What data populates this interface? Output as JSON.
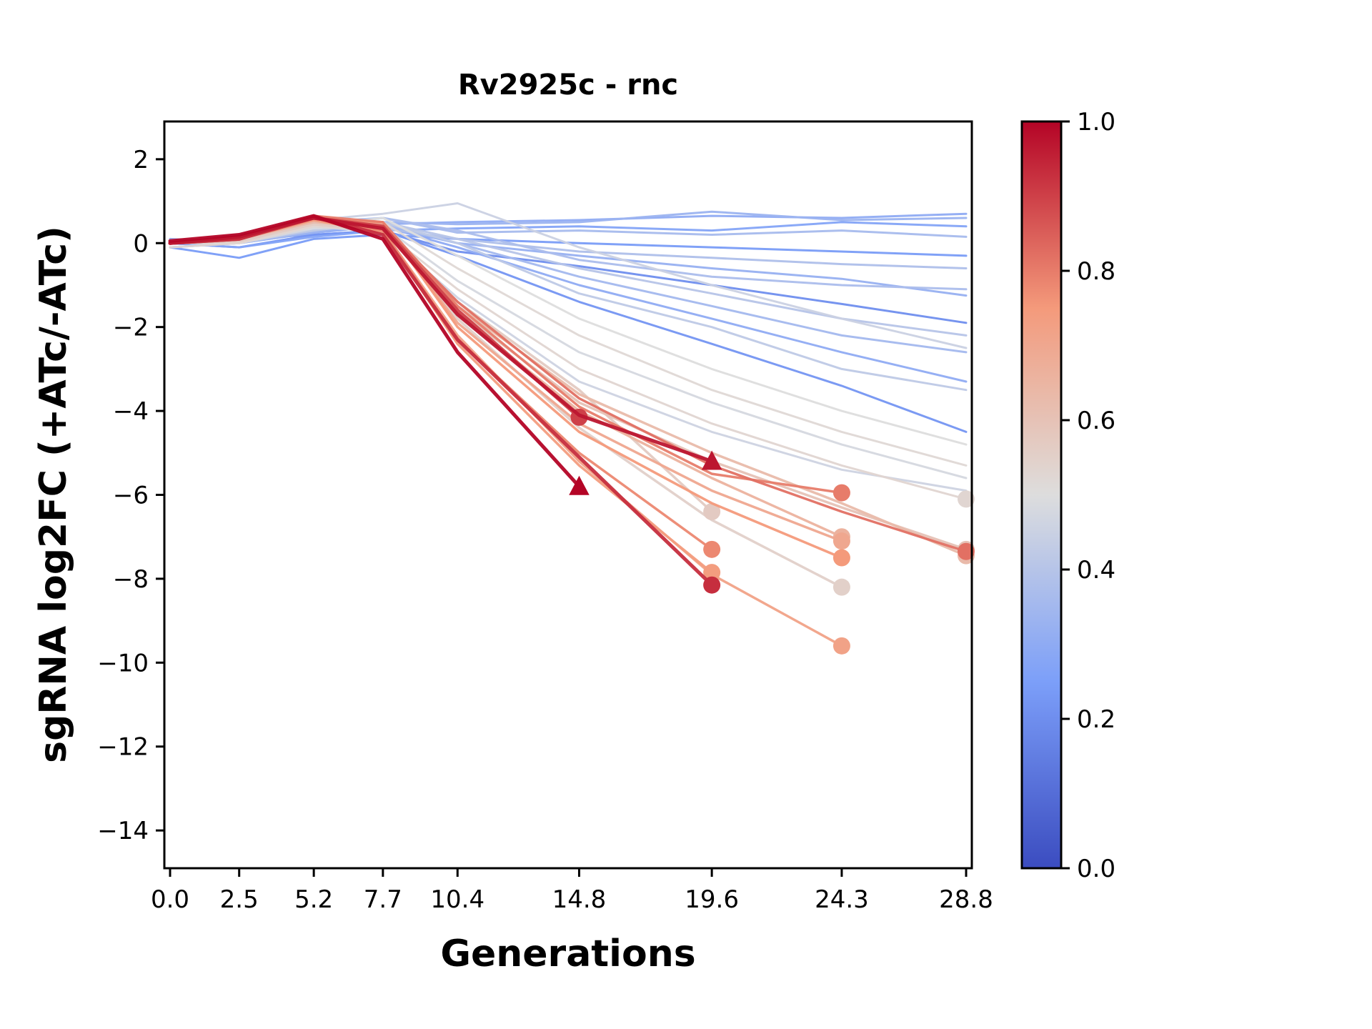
{
  "title": "Rv2925c - rnc",
  "xlabel": "Generations",
  "ylabel": "sgRNA log2FC (+ATc/-ATc)",
  "chart_data": {
    "type": "line",
    "x": [
      0.0,
      2.5,
      5.2,
      7.7,
      10.4,
      14.8,
      19.6,
      24.3,
      28.8
    ],
    "x_tick_labels": [
      "0.0",
      "2.5",
      "5.2",
      "7.7",
      "10.4",
      "14.8",
      "19.6",
      "24.3",
      "28.8"
    ],
    "y_ticks": [
      2,
      0,
      -2,
      -4,
      -6,
      -8,
      -10,
      -12,
      -14
    ],
    "y_tick_labels": [
      "2",
      "0",
      "−2",
      "−4",
      "−6",
      "−8",
      "−10",
      "−12",
      "−14"
    ],
    "xlim": [
      -0.2,
      29.0
    ],
    "ylim": [
      -14.9,
      2.9
    ],
    "grid": false,
    "legend": "none",
    "colorbar": {
      "min": 0.0,
      "max": 1.0,
      "tick_labels": [
        "1.0",
        "0.8",
        "0.6",
        "0.4",
        "0.2",
        "0.0"
      ],
      "colormap": "coolwarm",
      "stops": [
        {
          "t": 0.0,
          "color": "#3b4cc0"
        },
        {
          "t": 0.25,
          "color": "#7c9ff9"
        },
        {
          "t": 0.5,
          "color": "#dddddd"
        },
        {
          "t": 0.75,
          "color": "#f49a7b"
        },
        {
          "t": 1.0,
          "color": "#b40426"
        }
      ]
    },
    "series": [
      {
        "c": 0.2,
        "y": [
          0,
          0.1,
          0.2,
          0.3,
          -0.2,
          -0.55,
          -1.0,
          -1.45,
          -1.9
        ],
        "marker": null
      },
      {
        "c": 0.22,
        "y": [
          0,
          -0.1,
          0.2,
          0.3,
          -0.3,
          -1.4,
          -2.4,
          -3.4,
          -4.5
        ],
        "marker": null
      },
      {
        "c": 0.24,
        "y": [
          -0.1,
          -0.35,
          0.1,
          0.2,
          0.1,
          0,
          -0.1,
          -0.2,
          -0.3
        ],
        "marker": null
      },
      {
        "c": 0.27,
        "y": [
          0,
          -0.1,
          0.15,
          0.3,
          0.35,
          0.4,
          0.3,
          0.5,
          0.4
        ],
        "marker": null
      },
      {
        "c": 0.3,
        "y": [
          0,
          0.1,
          0.3,
          0.45,
          0.5,
          0.55,
          0.65,
          0.6,
          0.7
        ],
        "marker": null
      },
      {
        "c": 0.3,
        "y": [
          0,
          0,
          0.25,
          0.4,
          -0.1,
          -1.0,
          -1.8,
          -2.6,
          -3.3
        ],
        "marker": null
      },
      {
        "c": 0.32,
        "y": [
          0.1,
          0,
          0.3,
          0.4,
          0,
          -0.3,
          -0.6,
          -0.85,
          -1.25
        ],
        "marker": null
      },
      {
        "c": 0.33,
        "y": [
          -0.1,
          0,
          0.25,
          0.5,
          0.45,
          0.5,
          0.75,
          0.55,
          0.6
        ],
        "marker": null
      },
      {
        "c": 0.35,
        "y": [
          0,
          0.1,
          0.4,
          0.45,
          0,
          -0.8,
          -1.5,
          -2.2,
          -2.6
        ],
        "marker": null
      },
      {
        "c": 0.36,
        "y": [
          0,
          0.1,
          0.4,
          0.6,
          0.25,
          0.3,
          0.2,
          0.3,
          0.15
        ],
        "marker": null
      },
      {
        "c": 0.37,
        "y": [
          0,
          0.15,
          0.5,
          0.6,
          0.3,
          -0.4,
          -0.8,
          -1.0,
          -1.1
        ],
        "marker": null
      },
      {
        "c": 0.38,
        "y": [
          0,
          0.2,
          0.5,
          0.35,
          0.1,
          -0.2,
          -0.35,
          -0.5,
          -0.6
        ],
        "marker": null
      },
      {
        "c": 0.4,
        "y": [
          -0.1,
          0,
          0.3,
          0.5,
          0.1,
          -0.6,
          -1.2,
          -1.8,
          -2.2
        ],
        "marker": null
      },
      {
        "c": 0.42,
        "y": [
          0,
          0.1,
          0.3,
          0.5,
          0,
          -1.2,
          -2.0,
          -3.0,
          -3.5
        ],
        "marker": null
      },
      {
        "c": 0.45,
        "y": [
          0,
          0.1,
          0.55,
          0.7,
          0.95,
          -0.1,
          -1.0,
          -1.8,
          -2.5
        ],
        "marker": null
      },
      {
        "c": 0.46,
        "y": [
          0,
          0.1,
          0.4,
          0.25,
          -1.3,
          -3.3,
          -4.5,
          -5.4,
          -5.9
        ],
        "marker": null
      },
      {
        "c": 0.48,
        "y": [
          0,
          0,
          0.35,
          0.4,
          -0.9,
          -2.6,
          -3.8,
          -4.8,
          -5.6
        ],
        "marker": null
      },
      {
        "c": 0.5,
        "y": [
          0,
          0,
          0.4,
          0.6,
          -0.3,
          -1.8,
          -3.0,
          -4.0,
          -4.8
        ],
        "marker": null
      },
      {
        "c": 0.52,
        "y": [
          0,
          0.1,
          0.5,
          0.5,
          -0.6,
          -2.2,
          -3.5,
          -4.5,
          -5.3
        ],
        "marker": null
      },
      {
        "c": 0.53,
        "y": [
          -0.1,
          0,
          0.4,
          0.3,
          -1.1,
          -3.0,
          -4.3,
          -5.3,
          -6.1
        ],
        "marker": "circle"
      },
      {
        "c": 0.55,
        "y": [
          0,
          0.05,
          0.5,
          0.45,
          -1.8,
          -4.4,
          -6.6,
          -8.2
        ],
        "marker": "circle"
      },
      {
        "c": 0.57,
        "y": [
          0,
          0.05,
          0.45,
          0.3,
          -1.4,
          -3.5,
          -6.4
        ],
        "marker": "circle"
      },
      {
        "c": 0.6,
        "y": [
          0,
          0.1,
          0.5,
          0.35,
          -1.6,
          -3.8,
          -5.2,
          -6.3,
          -7.3
        ],
        "marker": "circle"
      },
      {
        "c": 0.63,
        "y": [
          0,
          0.1,
          0.5,
          0.4,
          -1.5,
          -3.6,
          -5.0,
          -6.2,
          -7.45
        ],
        "marker": "circle"
      },
      {
        "c": 0.66,
        "y": [
          0,
          0.1,
          0.55,
          0.4,
          -1.7,
          -4.0,
          -5.6,
          -7.0
        ],
        "marker": "circle"
      },
      {
        "c": 0.7,
        "y": [
          0,
          0.15,
          0.6,
          0.45,
          -1.9,
          -4.3,
          -5.9,
          -7.1
        ],
        "marker": "circle"
      },
      {
        "c": 0.72,
        "y": [
          0,
          0.1,
          0.55,
          0.3,
          -2.2,
          -5.2,
          -7.9,
          -9.6
        ],
        "marker": "circle"
      },
      {
        "c": 0.74,
        "y": [
          0,
          0.1,
          0.55,
          0.25,
          -2.4,
          -5.3,
          -7.85
        ],
        "marker": "circle"
      },
      {
        "c": 0.75,
        "y": [
          0,
          0.1,
          0.6,
          0.5,
          -2.0,
          -4.5,
          -6.2,
          -7.5
        ],
        "marker": "circle"
      },
      {
        "c": 0.78,
        "y": [
          0,
          0.1,
          0.6,
          0.3,
          -2.3,
          -5.0,
          -7.3
        ],
        "marker": "circle"
      },
      {
        "c": 0.8,
        "y": [
          0,
          0.15,
          0.65,
          0.5,
          -1.5,
          -3.9,
          -5.5,
          -5.95
        ],
        "marker": "circle"
      },
      {
        "c": 0.82,
        "y": [
          0,
          0.1,
          0.6,
          0.4,
          -1.4,
          -3.7,
          -5.3,
          -6.4,
          -7.35
        ],
        "marker": "circle"
      },
      {
        "c": 0.9,
        "y": [
          0,
          0.1,
          0.6,
          0.4,
          -1.6,
          -4.15
        ],
        "marker": "circle"
      },
      {
        "c": 0.93,
        "y": [
          0,
          0.1,
          0.62,
          0.2,
          -2.3,
          -5.1,
          -8.15
        ],
        "marker": "circle"
      },
      {
        "c": 0.97,
        "y": [
          0,
          0.15,
          0.6,
          0.35,
          -1.7,
          -4.1,
          -5.2
        ],
        "marker": "triangle"
      },
      {
        "c": 1.0,
        "y": [
          0.05,
          0.2,
          0.65,
          0.1,
          -2.6,
          -5.8
        ],
        "marker": "triangle"
      }
    ]
  }
}
